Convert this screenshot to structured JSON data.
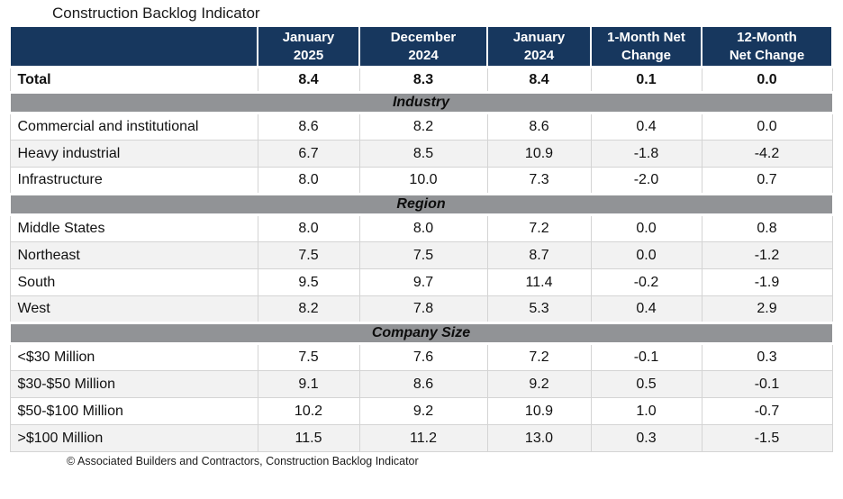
{
  "title": "Construction Backlog Indicator",
  "footer": "© Associated Builders and Contractors, Construction Backlog Indicator",
  "colors": {
    "header_bg": "#17375E",
    "header_text": "#FFFFFF",
    "section_band_bg": "#919396",
    "row_alt_bg": "#F2F2F2",
    "row_bg": "#FFFFFF",
    "border": "#D4D4D4",
    "text": "#111111"
  },
  "chart_data": {
    "type": "table",
    "title": "Construction Backlog Indicator",
    "columns": [
      "January\n2025",
      "December\n2024",
      "January\n2024",
      "1-Month Net\nChange",
      "12-Month\nNet Change"
    ],
    "total_row": {
      "label": "Total",
      "values": [
        "8.4",
        "8.3",
        "8.4",
        "0.1",
        "0.0"
      ]
    },
    "sections": [
      {
        "name": "Industry",
        "rows": [
          {
            "label": "Commercial and institutional",
            "values": [
              "8.6",
              "8.2",
              "8.6",
              "0.4",
              "0.0"
            ]
          },
          {
            "label": "Heavy industrial",
            "values": [
              "6.7",
              "8.5",
              "10.9",
              "-1.8",
              "-4.2"
            ]
          },
          {
            "label": "Infrastructure",
            "values": [
              "8.0",
              "10.0",
              "7.3",
              "-2.0",
              "0.7"
            ]
          }
        ]
      },
      {
        "name": "Region",
        "rows": [
          {
            "label": "Middle States",
            "values": [
              "8.0",
              "8.0",
              "7.2",
              "0.0",
              "0.8"
            ]
          },
          {
            "label": "Northeast",
            "values": [
              "7.5",
              "7.5",
              "8.7",
              "0.0",
              "-1.2"
            ]
          },
          {
            "label": "South",
            "values": [
              "9.5",
              "9.7",
              "11.4",
              "-0.2",
              "-1.9"
            ]
          },
          {
            "label": "West",
            "values": [
              "8.2",
              "7.8",
              "5.3",
              "0.4",
              "2.9"
            ]
          }
        ]
      },
      {
        "name": "Company Size",
        "rows": [
          {
            "label": "<$30 Million",
            "values": [
              "7.5",
              "7.6",
              "7.2",
              "-0.1",
              "0.3"
            ]
          },
          {
            "label": "$30-$50 Million",
            "values": [
              "9.1",
              "8.6",
              "9.2",
              "0.5",
              "-0.1"
            ]
          },
          {
            "label": "$50-$100 Million",
            "values": [
              "10.2",
              "9.2",
              "10.9",
              "1.0",
              "-0.7"
            ]
          },
          {
            "label": ">$100 Million",
            "values": [
              "11.5",
              "11.2",
              "13.0",
              "0.3",
              "-1.5"
            ]
          }
        ]
      }
    ]
  }
}
